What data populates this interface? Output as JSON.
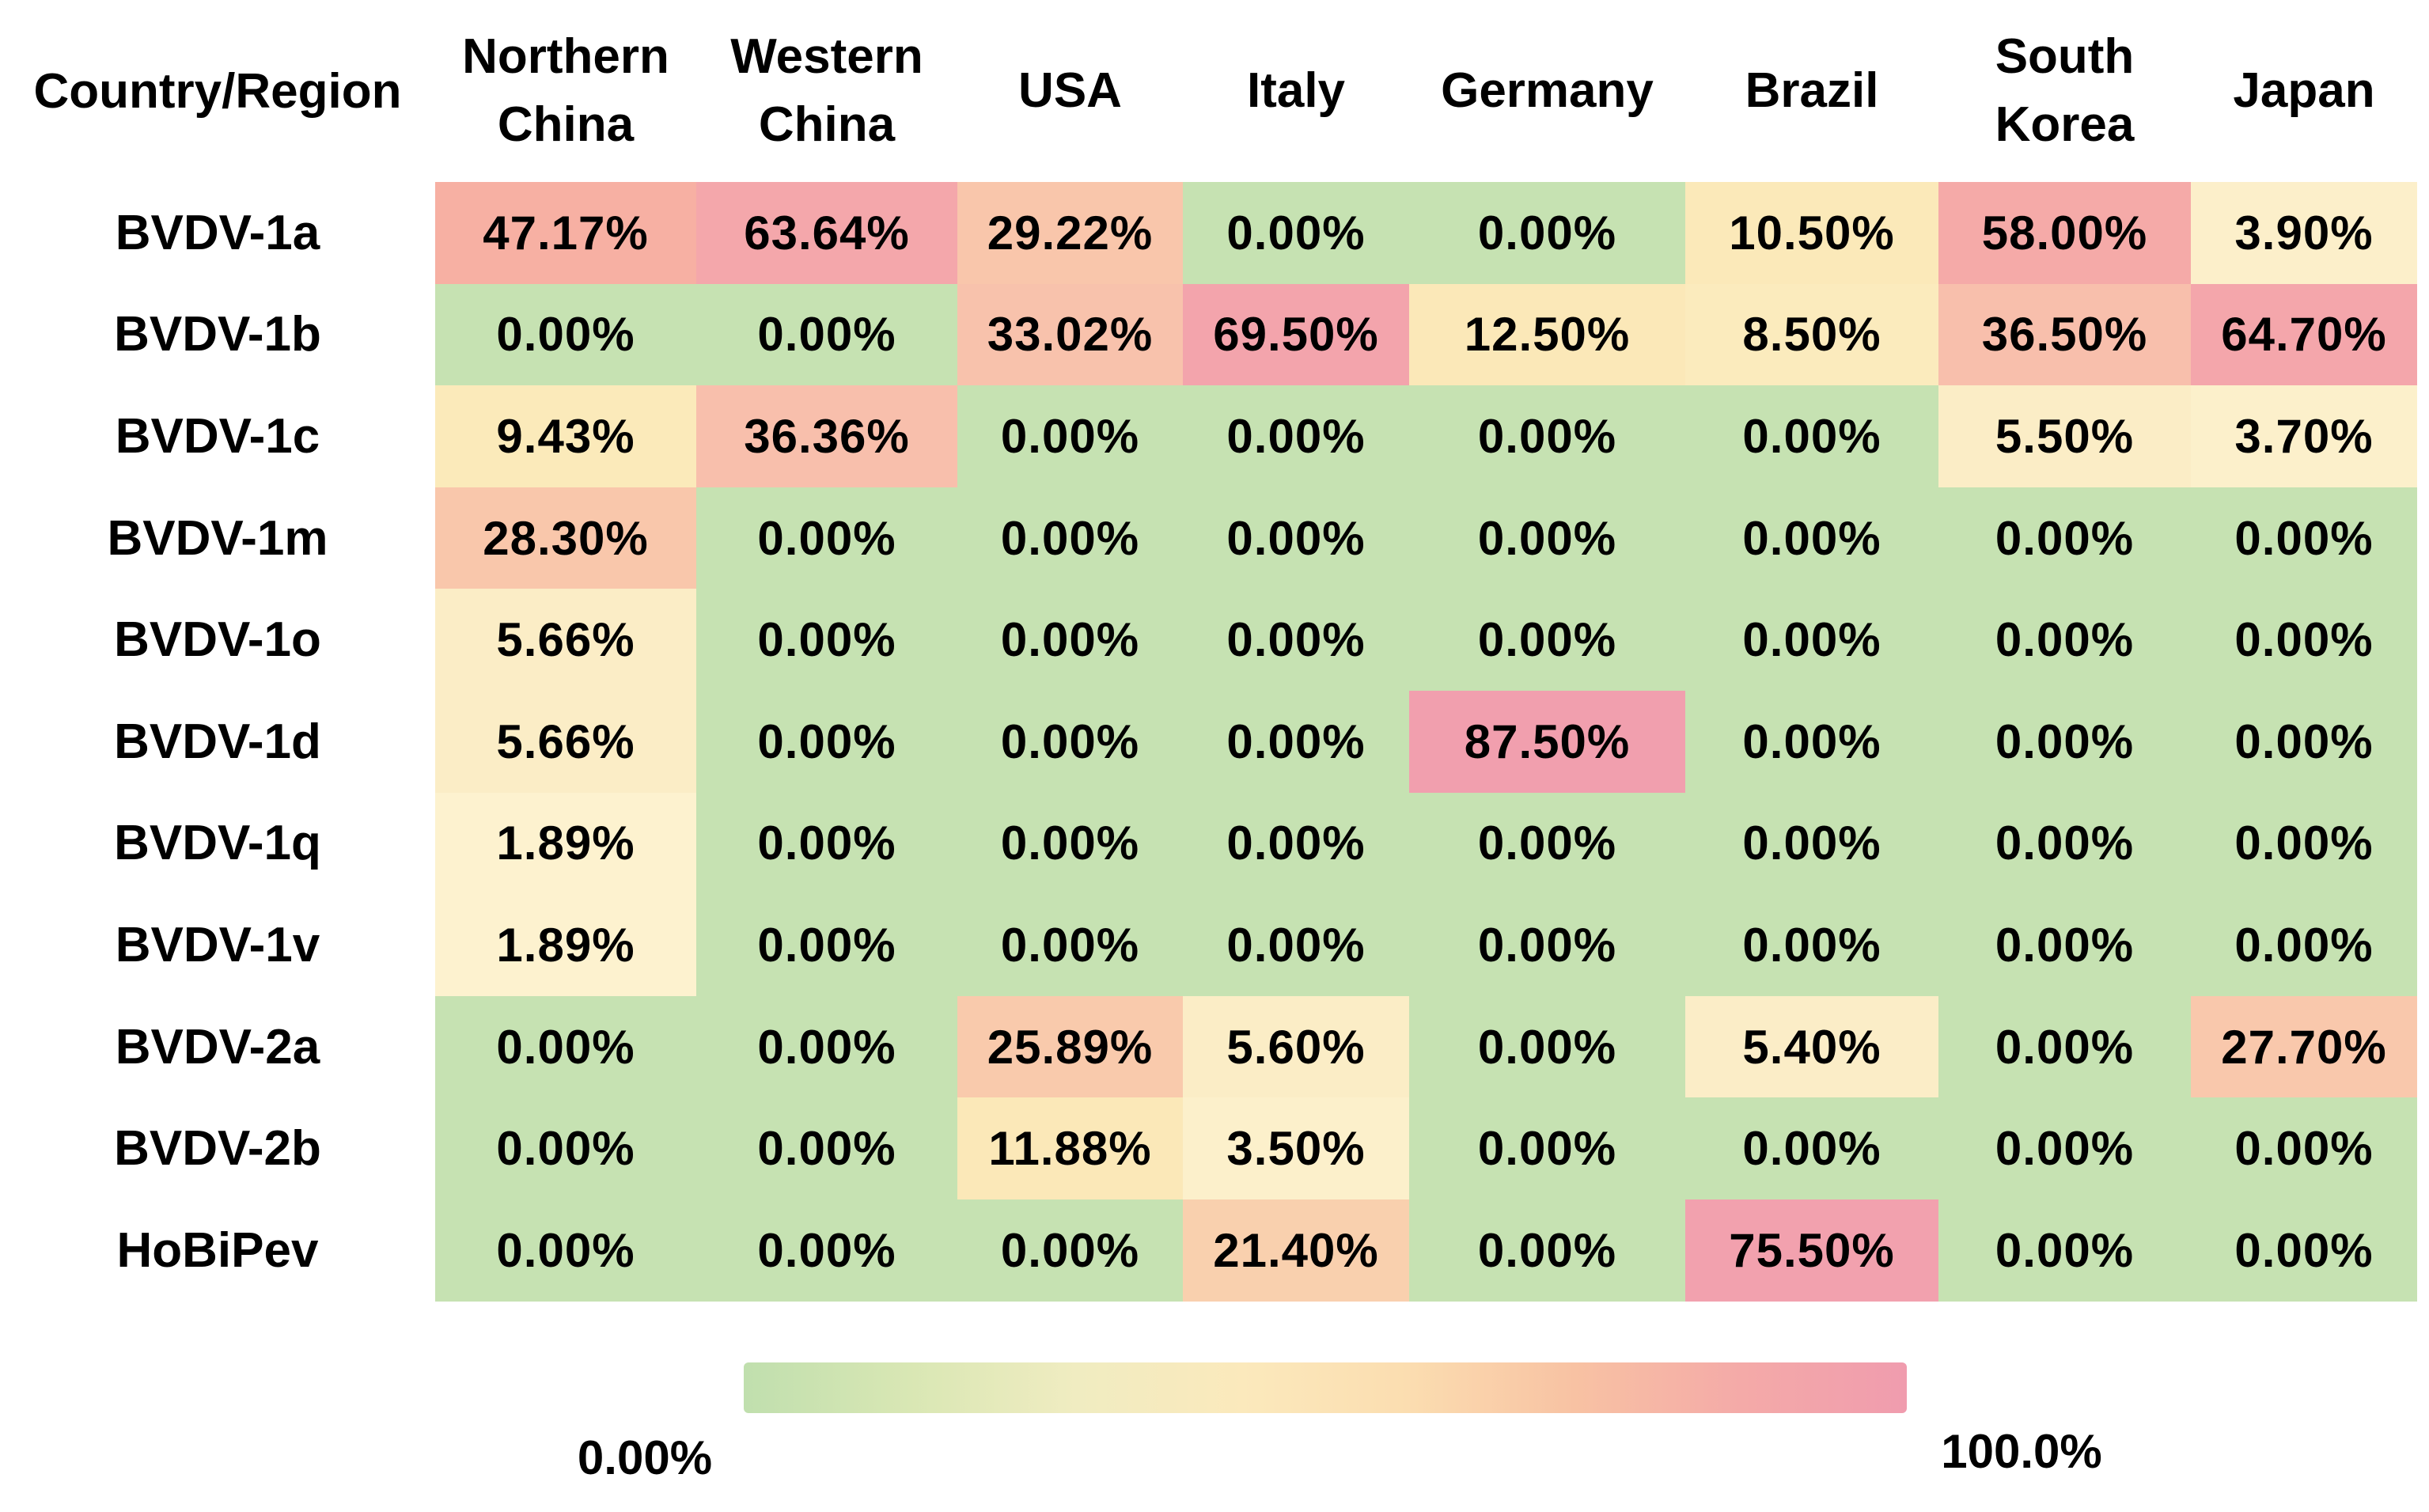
{
  "chart_data": {
    "type": "heatmap",
    "corner_label": "Country/Region",
    "columns": [
      "Northern\nChina",
      "Western\nChina",
      "USA",
      "Italy",
      "Germany",
      "Brazil",
      "South\nKorea",
      "Japan"
    ],
    "rows": [
      "BVDV-1a",
      "BVDV-1b",
      "BVDV-1c",
      "BVDV-1m",
      "BVDV-1o",
      "BVDV-1d",
      "BVDV-1q",
      "BVDV-1v",
      "BVDV-2a",
      "BVDV-2b",
      "HoBiPev"
    ],
    "values": [
      [
        47.17,
        63.64,
        29.22,
        0.0,
        0.0,
        10.5,
        58.0,
        3.9
      ],
      [
        0.0,
        0.0,
        33.02,
        69.5,
        12.5,
        8.5,
        36.5,
        64.7
      ],
      [
        9.43,
        36.36,
        0.0,
        0.0,
        0.0,
        0.0,
        5.5,
        3.7
      ],
      [
        28.3,
        0.0,
        0.0,
        0.0,
        0.0,
        0.0,
        0.0,
        0.0
      ],
      [
        5.66,
        0.0,
        0.0,
        0.0,
        0.0,
        0.0,
        0.0,
        0.0
      ],
      [
        5.66,
        0.0,
        0.0,
        0.0,
        87.5,
        0.0,
        0.0,
        0.0
      ],
      [
        1.89,
        0.0,
        0.0,
        0.0,
        0.0,
        0.0,
        0.0,
        0.0
      ],
      [
        1.89,
        0.0,
        0.0,
        0.0,
        0.0,
        0.0,
        0.0,
        0.0
      ],
      [
        0.0,
        0.0,
        25.89,
        5.6,
        0.0,
        5.4,
        0.0,
        27.7
      ],
      [
        0.0,
        0.0,
        11.88,
        3.5,
        0.0,
        0.0,
        0.0,
        0.0
      ],
      [
        0.0,
        0.0,
        0.0,
        21.4,
        0.0,
        75.5,
        0.0,
        0.0
      ]
    ],
    "labels": [
      [
        "47.17%",
        "63.64%",
        "29.22%",
        "0.00%",
        "0.00%",
        "10.50%",
        "58.00%",
        "3.90%"
      ],
      [
        "0.00%",
        "0.00%",
        "33.02%",
        "69.50%",
        "12.50%",
        "8.50%",
        "36.50%",
        "64.70%"
      ],
      [
        "9.43%",
        "36.36%",
        "0.00%",
        "0.00%",
        "0.00%",
        "0.00%",
        "5.50%",
        "3.70%"
      ],
      [
        "28.30%",
        "0.00%",
        "0.00%",
        "0.00%",
        "0.00%",
        "0.00%",
        "0.00%",
        "0.00%"
      ],
      [
        "5.66%",
        "0.00%",
        "0.00%",
        "0.00%",
        "0.00%",
        "0.00%",
        "0.00%",
        "0.00%"
      ],
      [
        "5.66%",
        "0.00%",
        "0.00%",
        "0.00%",
        "87.50%",
        "0.00%",
        "0.00%",
        "0.00%"
      ],
      [
        "1.89%",
        "0.00%",
        "0.00%",
        "0.00%",
        "0.00%",
        "0.00%",
        "0.00%",
        "0.00%"
      ],
      [
        "1.89%",
        "0.00%",
        "0.00%",
        "0.00%",
        "0.00%",
        "0.00%",
        "0.00%",
        "0.00%"
      ],
      [
        "0.00%",
        "0.00%",
        "25.89%",
        "5.60%",
        "0.00%",
        "5.40%",
        "0.00%",
        "27.70%"
      ],
      [
        "0.00%",
        "0.00%",
        "11.88%",
        "3.50%",
        "0.00%",
        "0.00%",
        "0.00%",
        "0.00%"
      ],
      [
        "0.00%",
        "0.00%",
        "0.00%",
        "21.40%",
        "0.00%",
        "75.50%",
        "0.00%",
        "0.00%"
      ]
    ],
    "color_scale": {
      "anchors": [
        {
          "v": 0,
          "c": "#c6e2b2"
        },
        {
          "v": 1.89,
          "c": "#fdf2cf"
        },
        {
          "v": 5.66,
          "c": "#fbedc6"
        },
        {
          "v": 9.43,
          "c": "#fbeaba"
        },
        {
          "v": 12.5,
          "c": "#fbe8b8"
        },
        {
          "v": 21.4,
          "c": "#f9d0ae"
        },
        {
          "v": 29.22,
          "c": "#f9c6ab"
        },
        {
          "v": 36.5,
          "c": "#f8bfac"
        },
        {
          "v": 47.17,
          "c": "#f7b0a3"
        },
        {
          "v": 58,
          "c": "#f5aaa8"
        },
        {
          "v": 63.64,
          "c": "#f4a7ab"
        },
        {
          "v": 75.5,
          "c": "#f2a1ae"
        },
        {
          "v": 87.5,
          "c": "#f19fae"
        },
        {
          "v": 100,
          "c": "#f09bb0"
        }
      ]
    },
    "legend": {
      "min_label": "0.00%",
      "max_label": "100.0%",
      "gradient_stops": [
        "#c0dfae",
        "#d9e7b4",
        "#f0ecc1",
        "#fbe9bc",
        "#fbddb0",
        "#f8c2a3",
        "#f4aaa8",
        "#f09cae"
      ]
    },
    "xlabel": "",
    "ylabel": "",
    "title": ""
  }
}
